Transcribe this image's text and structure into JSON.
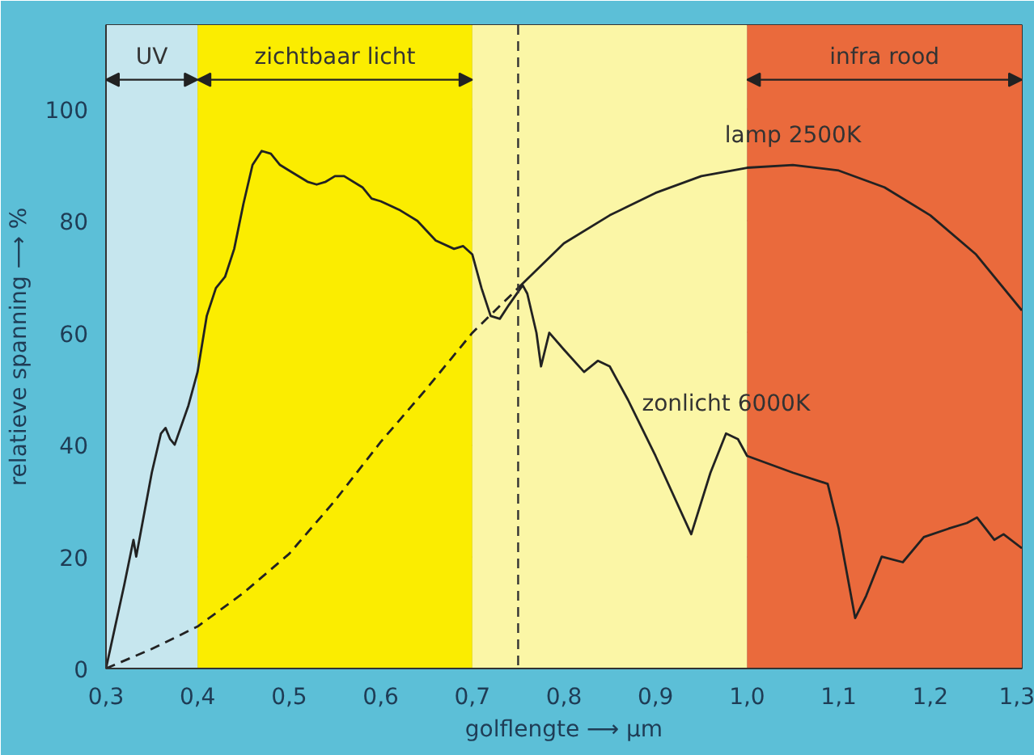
{
  "chart_data": {
    "type": "line",
    "xlabel": "golflengte ⟶ µm",
    "ylabel": "relatieve spanning ⟶ %",
    "xlim": [
      0.3,
      1.3
    ],
    "ylim": [
      0,
      115
    ],
    "xticks": [
      {
        "value": 0.3,
        "label": "0,3"
      },
      {
        "value": 0.4,
        "label": "0,4"
      },
      {
        "value": 0.5,
        "label": "0,5"
      },
      {
        "value": 0.6,
        "label": "0,6"
      },
      {
        "value": 0.7,
        "label": "0,7"
      },
      {
        "value": 0.8,
        "label": "0,8"
      },
      {
        "value": 0.9,
        "label": "0,9"
      },
      {
        "value": 1.0,
        "label": "1,0"
      },
      {
        "value": 1.1,
        "label": "1,1"
      },
      {
        "value": 1.2,
        "label": "1,2"
      },
      {
        "value": 1.3,
        "label": "1,3"
      }
    ],
    "yticks": [
      0,
      20,
      40,
      60,
      80,
      100
    ],
    "grid": true,
    "marker": "none",
    "bands": [
      {
        "axis": "x",
        "from": 0.3,
        "to": 0.4,
        "label": "UV",
        "color": "#c6e6ee"
      },
      {
        "axis": "x",
        "from": 0.4,
        "to": 0.7,
        "label": "zichtbaar licht",
        "color": "#fbed00"
      },
      {
        "axis": "x",
        "from": 0.7,
        "to": 1.0,
        "label": null,
        "color": "#fbf6a6"
      },
      {
        "axis": "x",
        "from": 1.0,
        "to": 1.3,
        "label": "infra rood",
        "color": "#ea6a3c"
      }
    ],
    "ref_lines": [
      {
        "axis": "x",
        "value": 0.75,
        "label": null,
        "color": "#333333",
        "line_style": "dashed"
      }
    ],
    "series": [
      {
        "name": "zonlicht 6000K",
        "color": "#222222",
        "line_style": "solid",
        "x": [
          0.3,
          0.32,
          0.33,
          0.333,
          0.35,
          0.36,
          0.365,
          0.37,
          0.375,
          0.39,
          0.4,
          0.41,
          0.42,
          0.43,
          0.44,
          0.45,
          0.46,
          0.47,
          0.48,
          0.49,
          0.5,
          0.52,
          0.53,
          0.54,
          0.55,
          0.56,
          0.58,
          0.59,
          0.6,
          0.62,
          0.64,
          0.66,
          0.68,
          0.69,
          0.7,
          0.71,
          0.72,
          0.73,
          0.74,
          0.755,
          0.76,
          0.77,
          0.775,
          0.784,
          0.8,
          0.822,
          0.837,
          0.85,
          0.87,
          0.9,
          0.939,
          0.96,
          0.977,
          0.99,
          1.0,
          1.05,
          1.088,
          1.1,
          1.118,
          1.13,
          1.147,
          1.17,
          1.193,
          1.22,
          1.24,
          1.251,
          1.27,
          1.28,
          1.3
        ],
        "values": [
          0,
          15,
          23,
          20,
          35,
          42,
          43,
          41,
          40,
          47,
          53,
          63,
          68,
          70,
          75,
          83,
          90,
          92.5,
          92,
          90,
          89,
          87,
          86.5,
          87,
          88,
          88,
          86,
          84,
          83.5,
          82,
          80,
          76.5,
          75,
          75.5,
          74,
          68,
          63,
          62.5,
          65,
          68.5,
          67,
          60,
          54,
          60,
          57,
          53,
          55,
          54,
          48,
          38,
          24,
          35,
          42,
          41,
          38,
          35,
          33,
          25,
          9,
          13,
          20,
          19,
          23.5,
          25,
          26,
          27,
          23,
          24,
          21.5
        ]
      },
      {
        "name": "lamp 2500K",
        "color": "#222222",
        "line_style": "solid",
        "x": [
          0.75,
          0.8,
          0.85,
          0.9,
          0.95,
          1.0,
          1.05,
          1.1,
          1.15,
          1.2,
          1.25,
          1.3
        ],
        "values": [
          68,
          76,
          81,
          85,
          88,
          89.5,
          90,
          89,
          86,
          81,
          74,
          64
        ]
      },
      {
        "color": "#222222",
        "line_style": "dashed",
        "x": [
          0.3,
          0.35,
          0.4,
          0.45,
          0.5,
          0.55,
          0.6,
          0.65,
          0.7,
          0.75
        ],
        "values": [
          0,
          3.5,
          7.5,
          13.5,
          20.5,
          30,
          40.5,
          50,
          60,
          68
        ]
      }
    ]
  }
}
